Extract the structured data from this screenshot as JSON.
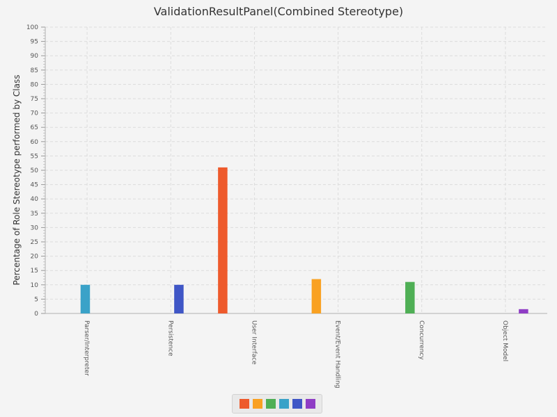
{
  "chart_data": {
    "type": "bar",
    "title": "ValidationResultPanel(Combined Stereotype)",
    "xlabel": "",
    "ylabel": "Percentage of Role Stereotype performed by Class",
    "ylim": [
      0,
      100
    ],
    "y_ticks": [
      0,
      5,
      10,
      15,
      20,
      25,
      30,
      35,
      40,
      45,
      50,
      55,
      60,
      65,
      70,
      75,
      80,
      85,
      90,
      95,
      100
    ],
    "grid": true,
    "legend_position": "bottom-center",
    "categories": [
      "Parser/Interpreter",
      "Persistence",
      "User Interface",
      "Event/Event Handling",
      "Concurrency",
      "Object Model"
    ],
    "series": [
      {
        "color": "#ee5a2c",
        "values": [
          0,
          0,
          51,
          0,
          0,
          0
        ]
      },
      {
        "color": "#f9a122",
        "values": [
          0,
          0,
          0,
          12,
          0,
          0
        ]
      },
      {
        "color": "#4faf55",
        "values": [
          0,
          0,
          0,
          0,
          11,
          0
        ]
      },
      {
        "color": "#3aa2c8",
        "values": [
          10,
          0,
          0,
          0,
          0,
          0
        ]
      },
      {
        "color": "#3f56c6",
        "values": [
          0,
          10,
          0,
          0,
          0,
          0
        ]
      },
      {
        "color": "#8f3dc5",
        "values": [
          0,
          0,
          0,
          0,
          0,
          1.5
        ]
      }
    ]
  }
}
